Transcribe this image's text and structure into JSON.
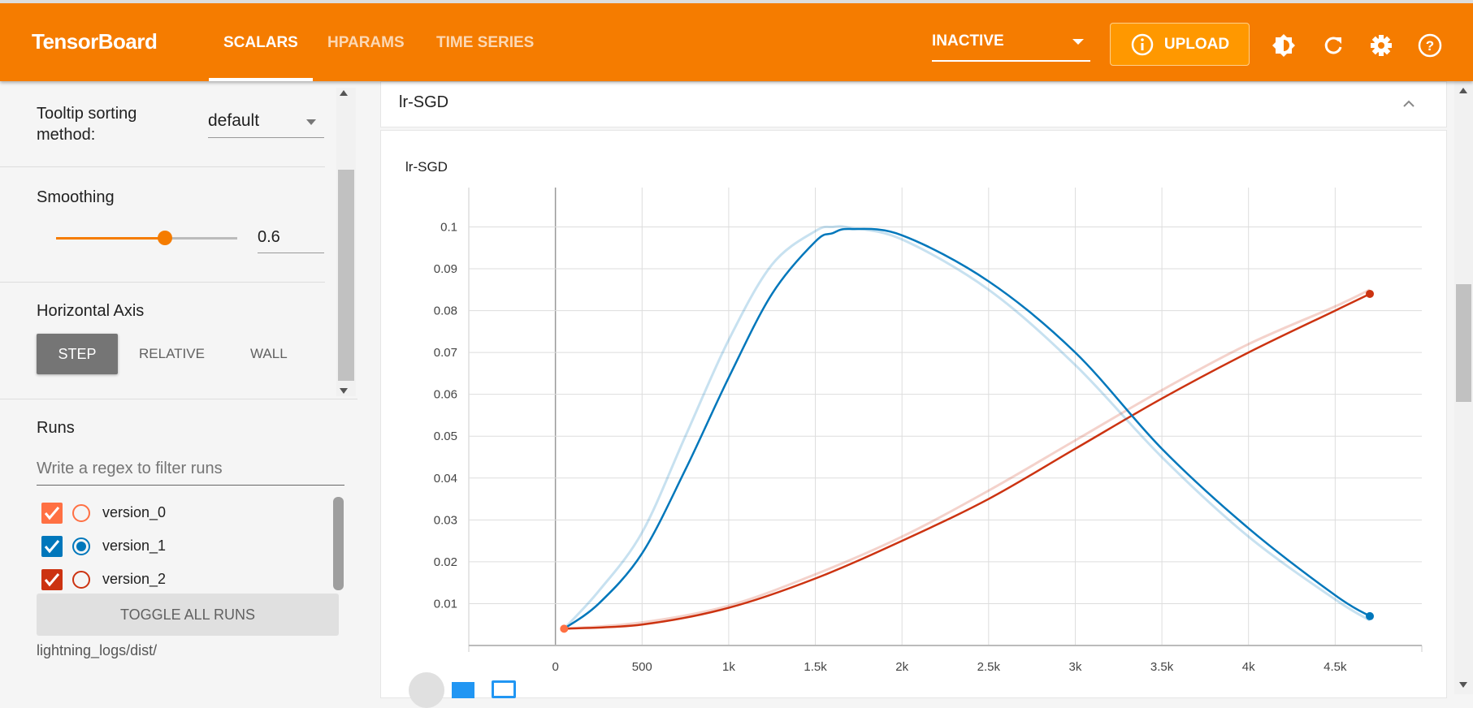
{
  "header": {
    "brand": "TensorBoard",
    "tabs": [
      {
        "label": "SCALARS",
        "active": true
      },
      {
        "label": "HPARAMS"
      },
      {
        "label": "TIME SERIES"
      }
    ],
    "status_select": "INACTIVE",
    "upload_label": "UPLOAD",
    "accent": "#f57c00",
    "icons": [
      "theme-toggle-icon",
      "refresh-icon",
      "settings-icon",
      "help-icon"
    ]
  },
  "sidebar": {
    "tooltip_label": "Tooltip sorting method:",
    "tooltip_label_1": "Tooltip sorting",
    "tooltip_label_2": "method:",
    "tooltip_value": "default",
    "smoothing_label": "Smoothing",
    "smoothing_value": "0.6",
    "smoothing_fraction": 0.6,
    "axis_label": "Horizontal Axis",
    "axis_options": [
      "STEP",
      "RELATIVE",
      "WALL"
    ],
    "axis_selected": "STEP",
    "runs_label": "Runs",
    "runs_filter_placeholder": "Write a regex to filter runs",
    "runs": [
      {
        "name": "version_0",
        "color": "#ff7043",
        "checked": true,
        "selected": false
      },
      {
        "name": "version_1",
        "color": "#0077bb",
        "checked": true,
        "selected": true
      },
      {
        "name": "version_2",
        "color": "#cc3311",
        "checked": true,
        "selected": false
      }
    ],
    "toggle_all": "TOGGLE ALL RUNS",
    "log_dir": "lightning_logs/dist/"
  },
  "card": {
    "title": "lr-SGD"
  },
  "chart_data": {
    "type": "line",
    "title": "lr-SGD",
    "xlabel": "",
    "ylabel": "",
    "xlim": [
      -500,
      5000
    ],
    "ylim": [
      0,
      0.1094
    ],
    "grid": true,
    "xticks": [
      0,
      500,
      1000,
      1500,
      2000,
      2500,
      3000,
      3500,
      4000,
      4500
    ],
    "xtick_labels": [
      "0",
      "500",
      "1k",
      "1.5k",
      "2k",
      "2.5k",
      "3k",
      "3.5k",
      "4k",
      "4.5k"
    ],
    "yticks": [
      0.01,
      0.02,
      0.03,
      0.04,
      0.05,
      0.06,
      0.07,
      0.08,
      0.09,
      0.1
    ],
    "ytick_labels": [
      "0.01",
      "0.02",
      "0.03",
      "0.04",
      "0.05",
      "0.06",
      "0.07",
      "0.08",
      "0.09",
      "0.1"
    ],
    "series": [
      {
        "name": "version_0",
        "color": "#ff7043",
        "x": [
          50
        ],
        "raw": [
          0.004
        ],
        "smoothed": [
          0.004
        ]
      },
      {
        "name": "version_1",
        "color": "#0077bb",
        "x": [
          50,
          250,
          500,
          750,
          1000,
          1250,
          1500,
          1600,
          1700,
          2000,
          2500,
          3000,
          3500,
          4000,
          4500,
          4700
        ],
        "raw": [
          0.004,
          0.013,
          0.027,
          0.05,
          0.073,
          0.091,
          0.099,
          0.1,
          0.0998,
          0.097,
          0.085,
          0.067,
          0.045,
          0.026,
          0.011,
          0.006
        ],
        "smoothed": [
          0.004,
          0.01,
          0.022,
          0.042,
          0.064,
          0.084,
          0.0965,
          0.0985,
          0.0995,
          0.098,
          0.087,
          0.07,
          0.047,
          0.028,
          0.012,
          0.007
        ]
      },
      {
        "name": "version_2",
        "color": "#cc3311",
        "x": [
          50,
          500,
          1000,
          1500,
          2000,
          2500,
          3000,
          3500,
          4000,
          4500,
          4700
        ],
        "raw": [
          0.004,
          0.0055,
          0.0095,
          0.017,
          0.026,
          0.037,
          0.049,
          0.061,
          0.072,
          0.081,
          0.085
        ],
        "smoothed": [
          0.004,
          0.005,
          0.009,
          0.016,
          0.025,
          0.035,
          0.047,
          0.059,
          0.07,
          0.08,
          0.084
        ]
      }
    ]
  }
}
